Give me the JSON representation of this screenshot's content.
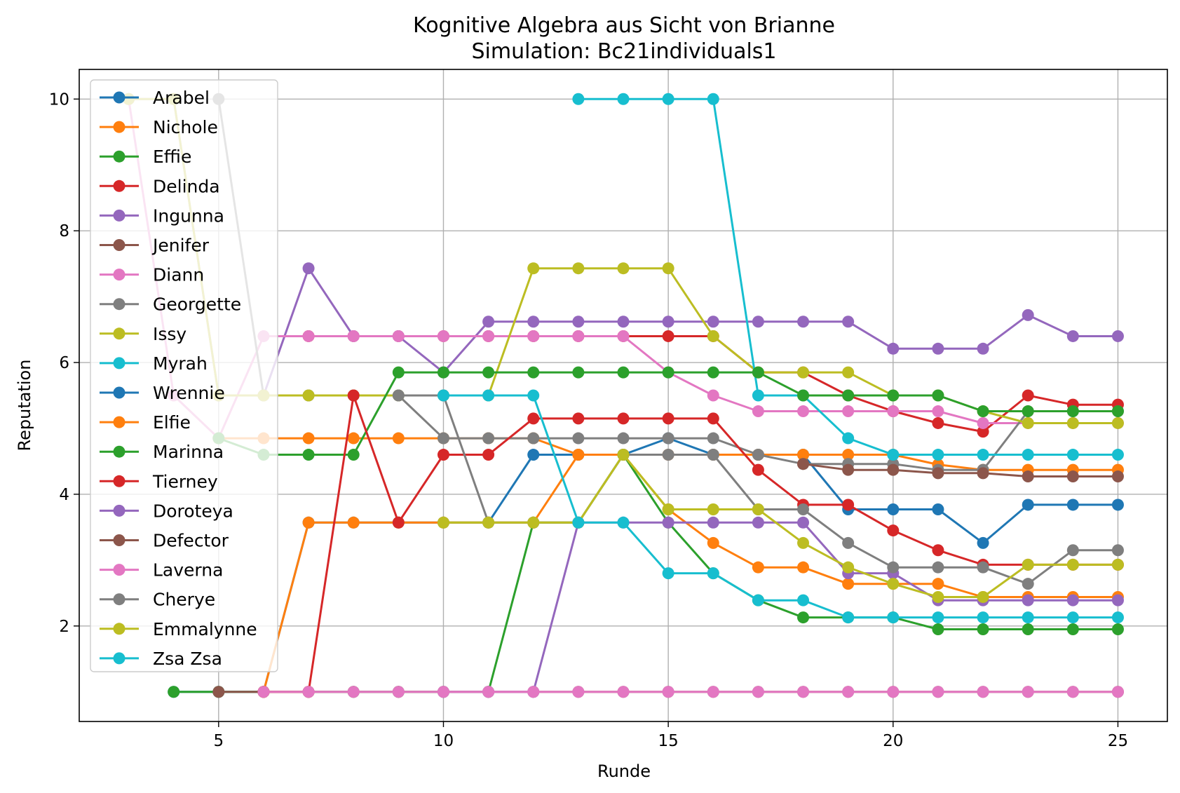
{
  "chart_data": {
    "type": "line",
    "title": "Kognitive Algebra aus Sicht von Brianne",
    "subtitle": "Simulation: Bc21individuals1",
    "xlabel": "Runde",
    "ylabel": "Reputation",
    "xlim": [
      1.9,
      26.1
    ],
    "ylim": [
      0.55,
      10.45
    ],
    "xticks": [
      5,
      10,
      15,
      20,
      25
    ],
    "yticks": [
      2,
      4,
      6,
      8,
      10
    ],
    "grid": true,
    "legend_position": "upper-left",
    "series": [
      {
        "name": "Arabel",
        "color": "#1f77b4",
        "x": [
          4,
          5,
          6,
          7,
          8,
          9,
          10,
          11,
          12,
          13,
          14,
          15,
          16,
          17,
          18,
          19,
          20,
          21,
          22,
          23,
          24,
          25
        ],
        "y": [
          1,
          1,
          1,
          3.57,
          3.57,
          3.57,
          3.57,
          3.57,
          4.6,
          4.6,
          4.6,
          4.85,
          4.6,
          4.6,
          4.6,
          3.77,
          3.77,
          3.77,
          3.26,
          3.84,
          3.84,
          3.84
        ]
      },
      {
        "name": "Nichole",
        "color": "#ff7f0e",
        "x": [
          5,
          6,
          7,
          8,
          9,
          10,
          11,
          12,
          13,
          14,
          15,
          16,
          17,
          18,
          19,
          20,
          21,
          22,
          23,
          24,
          25
        ],
        "y": [
          4.85,
          4.85,
          4.85,
          4.85,
          4.85,
          4.85,
          4.85,
          4.85,
          4.6,
          4.6,
          4.6,
          4.6,
          4.6,
          4.6,
          4.6,
          4.6,
          4.45,
          4.37,
          4.37,
          4.37,
          4.37
        ]
      },
      {
        "name": "Effie",
        "color": "#2ca02c",
        "x": [
          4,
          5,
          6,
          7,
          8,
          9,
          10,
          11,
          12,
          13,
          14,
          15,
          16,
          17,
          18,
          19,
          20,
          21,
          22,
          23,
          24,
          25
        ],
        "y": [
          1,
          1,
          1,
          1,
          1,
          1,
          1,
          1,
          3.57,
          3.57,
          4.6,
          3.57,
          2.8,
          2.39,
          2.13,
          2.13,
          2.13,
          1.95,
          1.95,
          1.95,
          1.95,
          1.95
        ]
      },
      {
        "name": "Delinda",
        "color": "#d62728",
        "x": [
          7,
          8,
          9,
          10,
          11,
          12,
          13,
          14,
          15,
          16,
          17,
          18,
          19,
          20,
          21,
          22,
          23,
          24,
          25
        ],
        "y": [
          6.4,
          6.4,
          6.4,
          6.4,
          6.4,
          6.4,
          6.4,
          6.4,
          6.4,
          6.4,
          5.85,
          5.85,
          5.5,
          5.26,
          5.08,
          4.95,
          5.5,
          5.36,
          5.36
        ]
      },
      {
        "name": "Ingunna",
        "color": "#9467bd",
        "x": [
          3,
          4,
          5,
          6,
          7,
          8,
          9,
          10,
          11,
          12,
          13,
          14,
          15,
          16,
          17,
          18,
          19,
          20,
          21,
          22,
          23,
          24,
          25
        ],
        "y": [
          10,
          10,
          5.5,
          5.5,
          7.43,
          6.4,
          6.4,
          5.85,
          6.62,
          6.62,
          6.62,
          6.62,
          6.62,
          6.62,
          6.62,
          6.62,
          6.62,
          6.21,
          6.21,
          6.21,
          6.72,
          6.4,
          6.4
        ]
      },
      {
        "name": "Jenifer",
        "color": "#8c564b",
        "x": [
          5,
          6,
          7,
          8,
          9,
          10,
          11,
          12,
          13,
          14,
          15,
          16,
          17,
          18,
          19,
          20,
          21,
          22,
          23,
          24,
          25
        ],
        "y": [
          1,
          1,
          1,
          1,
          1,
          1,
          1,
          1,
          1,
          1,
          1,
          1,
          1,
          1,
          1,
          1,
          1,
          1,
          1,
          1,
          1
        ]
      },
      {
        "name": "Diann",
        "color": "#e377c2",
        "x": [
          3,
          4,
          5,
          6,
          7,
          8,
          9,
          10,
          11,
          12,
          13,
          14,
          15,
          16,
          17,
          18,
          19,
          20,
          21,
          22,
          23,
          24,
          25
        ],
        "y": [
          10,
          5.5,
          4.85,
          6.4,
          6.4,
          6.4,
          6.4,
          6.4,
          6.4,
          6.4,
          6.4,
          6.4,
          5.85,
          5.5,
          5.26,
          5.26,
          5.26,
          5.26,
          5.26,
          5.08,
          5.08,
          5.08,
          5.08
        ]
      },
      {
        "name": "Georgette",
        "color": "#7f7f7f",
        "x": [
          5,
          6,
          7,
          8,
          9,
          10,
          11,
          12,
          13,
          14,
          15,
          16,
          17,
          18,
          19,
          20,
          21,
          22,
          23,
          24,
          25
        ],
        "y": [
          10,
          5.5,
          5.5,
          5.5,
          5.5,
          4.85,
          4.85,
          4.85,
          4.85,
          4.85,
          4.85,
          4.85,
          4.6,
          4.46,
          4.46,
          4.46,
          4.37,
          4.37,
          5.26,
          5.26,
          5.26
        ]
      },
      {
        "name": "Issy",
        "color": "#bcbd22",
        "x": [
          3,
          4,
          5,
          6,
          7,
          8,
          9,
          10,
          11,
          12,
          13,
          14,
          15,
          16,
          17,
          18,
          19,
          20,
          21,
          22,
          23,
          24,
          25
        ],
        "y": [
          10,
          10,
          5.5,
          5.5,
          5.5,
          5.5,
          5.5,
          5.5,
          5.5,
          7.43,
          7.43,
          7.43,
          7.43,
          6.4,
          5.85,
          5.85,
          5.85,
          5.5,
          5.5,
          5.26,
          5.08,
          5.08,
          5.08
        ]
      },
      {
        "name": "Myrah",
        "color": "#17becf",
        "x": [
          13,
          14,
          15,
          16,
          17,
          18,
          19,
          20,
          21,
          22,
          23,
          24,
          25
        ],
        "y": [
          10,
          10,
          10,
          10,
          5.5,
          5.5,
          4.85,
          4.6,
          4.6,
          4.6,
          4.6,
          4.6,
          4.6
        ]
      },
      {
        "name": "Wrennie",
        "color": "#1f77b4",
        "x": [],
        "y": []
      },
      {
        "name": "Elfie",
        "color": "#ff7f0e",
        "x": [
          6,
          7,
          8,
          9,
          10,
          11,
          12,
          13,
          14,
          15,
          16,
          17,
          18,
          19,
          20,
          21,
          22,
          23,
          24,
          25
        ],
        "y": [
          1,
          3.57,
          3.57,
          3.57,
          3.57,
          3.57,
          3.57,
          4.6,
          4.6,
          3.77,
          3.26,
          2.89,
          2.89,
          2.64,
          2.64,
          2.64,
          2.44,
          2.44,
          2.44,
          2.44
        ]
      },
      {
        "name": "Marinna",
        "color": "#2ca02c",
        "x": [
          5,
          6,
          7,
          8,
          9,
          10,
          11,
          12,
          13,
          14,
          15,
          16,
          17,
          18,
          19,
          20,
          21,
          22,
          23,
          24,
          25
        ],
        "y": [
          4.85,
          4.6,
          4.6,
          4.6,
          5.85,
          5.85,
          5.85,
          5.85,
          5.85,
          5.85,
          5.85,
          5.85,
          5.85,
          5.5,
          5.5,
          5.5,
          5.5,
          5.26,
          5.26,
          5.26,
          5.26
        ]
      },
      {
        "name": "Tierney",
        "color": "#d62728",
        "x": [
          6,
          7,
          8,
          9,
          10,
          11,
          12,
          13,
          14,
          15,
          16,
          17,
          18,
          19,
          20,
          21,
          22,
          23,
          24,
          25
        ],
        "y": [
          1,
          1,
          5.5,
          3.57,
          4.6,
          4.6,
          5.15,
          5.15,
          5.15,
          5.15,
          5.15,
          4.37,
          3.84,
          3.84,
          3.45,
          3.15,
          2.93,
          2.93,
          2.93,
          2.93
        ]
      },
      {
        "name": "Doroteya",
        "color": "#9467bd",
        "x": [
          10,
          11,
          12,
          13,
          14,
          15,
          16,
          17,
          18,
          19,
          20,
          21,
          22,
          23,
          24,
          25
        ],
        "y": [
          1,
          1,
          1,
          3.57,
          3.57,
          3.57,
          3.57,
          3.57,
          3.57,
          2.8,
          2.8,
          2.39,
          2.39,
          2.39,
          2.39,
          2.39
        ]
      },
      {
        "name": "Defector",
        "color": "#8c564b",
        "x": [
          18,
          19,
          20,
          21,
          22,
          23,
          24,
          25
        ],
        "y": [
          4.46,
          4.37,
          4.37,
          4.32,
          4.32,
          4.27,
          4.27,
          4.27
        ]
      },
      {
        "name": "Laverna",
        "color": "#e377c2",
        "x": [
          6,
          7,
          8,
          9,
          10,
          11,
          12,
          13,
          14,
          15,
          16,
          17,
          18,
          19,
          20,
          21,
          22,
          23,
          24,
          25
        ],
        "y": [
          1,
          1,
          1,
          1,
          1,
          1,
          1,
          1,
          1,
          1,
          1,
          1,
          1,
          1,
          1,
          1,
          1,
          1,
          1,
          1
        ]
      },
      {
        "name": "Cherye",
        "color": "#7f7f7f",
        "x": [
          9,
          10,
          11,
          12,
          13,
          14,
          15,
          16,
          17,
          18,
          19,
          20,
          21,
          22,
          23,
          24,
          25
        ],
        "y": [
          5.5,
          5.5,
          3.57,
          3.57,
          3.57,
          4.6,
          4.6,
          4.6,
          3.77,
          3.77,
          3.26,
          2.89,
          2.89,
          2.89,
          2.64,
          3.15,
          3.15
        ]
      },
      {
        "name": "Emmalynne",
        "color": "#bcbd22",
        "x": [
          10,
          11,
          12,
          13,
          14,
          15,
          16,
          17,
          18,
          19,
          20,
          21,
          22,
          23,
          24,
          25
        ],
        "y": [
          3.57,
          3.57,
          3.57,
          3.57,
          4.6,
          3.77,
          3.77,
          3.77,
          3.26,
          2.89,
          2.64,
          2.44,
          2.44,
          2.93,
          2.93,
          2.93
        ]
      },
      {
        "name": "Zsa Zsa",
        "color": "#17becf",
        "x": [
          10,
          11,
          12,
          13,
          14,
          15,
          16,
          17,
          18,
          19,
          20,
          21,
          22,
          23,
          24,
          25
        ],
        "y": [
          5.5,
          5.5,
          5.5,
          3.57,
          3.57,
          2.8,
          2.8,
          2.39,
          2.39,
          2.13,
          2.13,
          2.13,
          2.13,
          2.13,
          2.13,
          2.13
        ]
      }
    ]
  }
}
